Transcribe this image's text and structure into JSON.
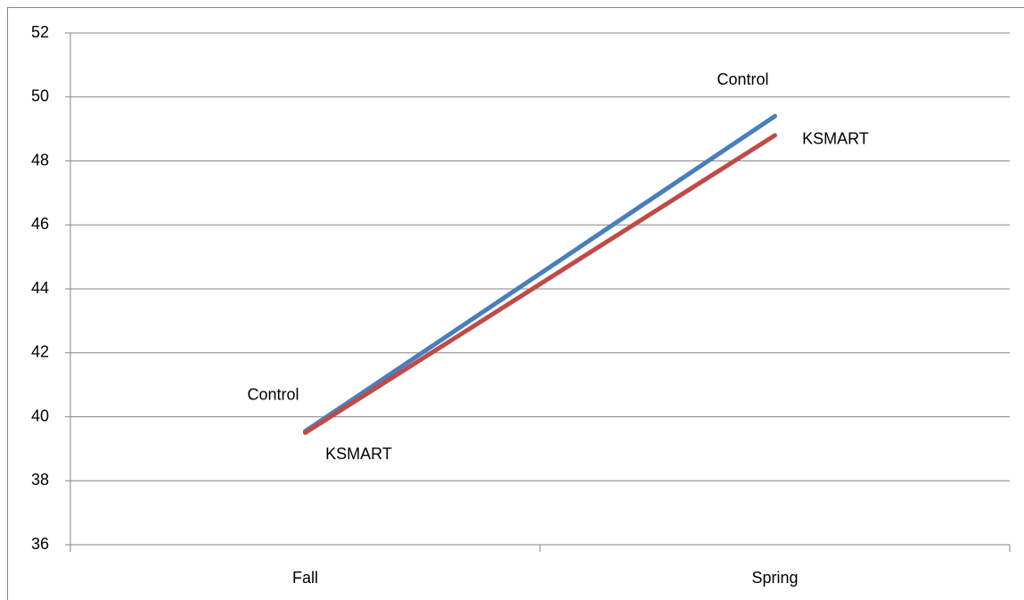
{
  "chart_data": {
    "type": "line",
    "categories": [
      "Fall",
      "Spring"
    ],
    "series": [
      {
        "name": "Control",
        "color": "#4a7ebb",
        "values": [
          39.55,
          49.4
        ]
      },
      {
        "name": "KSMART",
        "color": "#be4b48",
        "values": [
          39.5,
          48.8
        ]
      }
    ],
    "ylim": [
      36,
      52
    ],
    "yticks": [
      36,
      38,
      40,
      42,
      44,
      46,
      48,
      50,
      52
    ],
    "grid": true
  }
}
